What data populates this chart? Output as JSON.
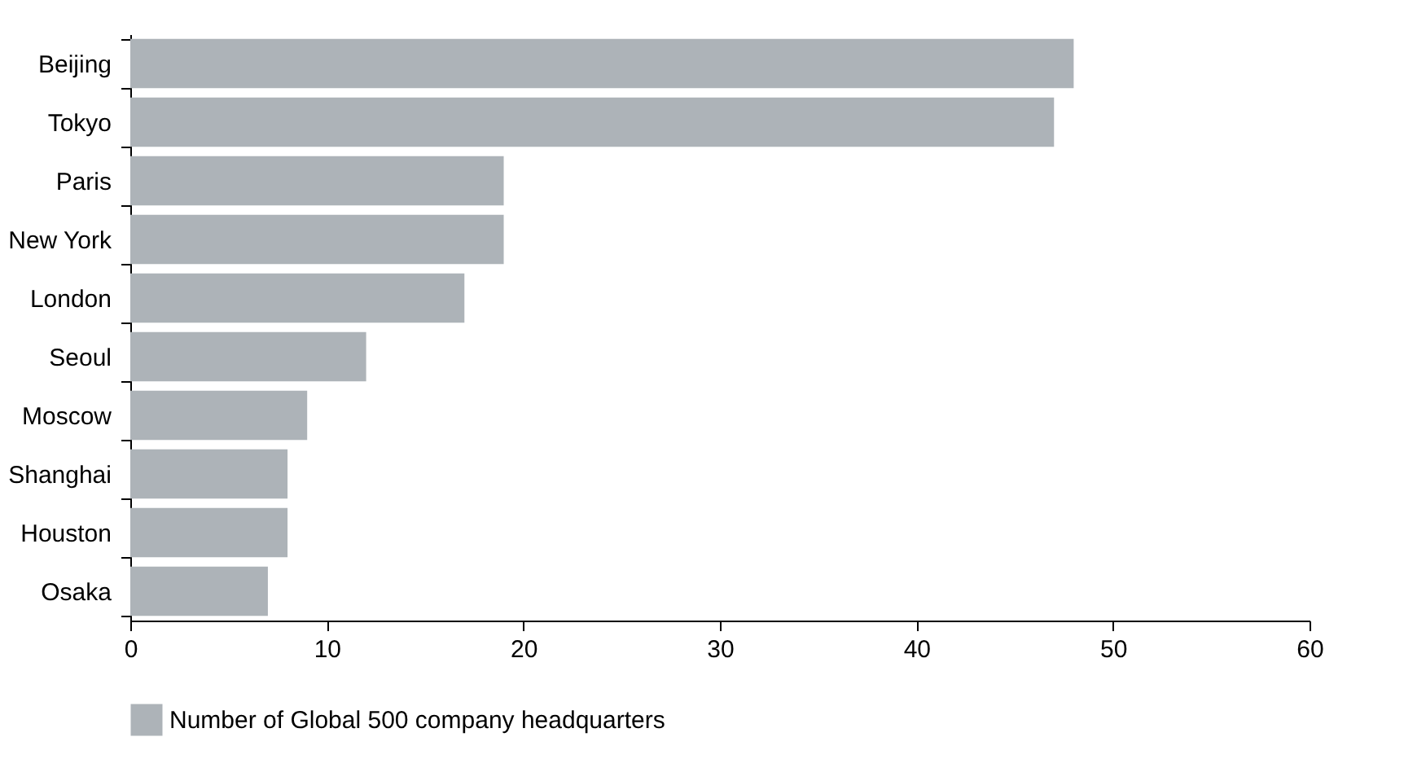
{
  "chart_data": {
    "type": "bar",
    "orientation": "horizontal",
    "categories": [
      "Beijing",
      "Tokyo",
      "Paris",
      "New York",
      "London",
      "Seoul",
      "Moscow",
      "Shanghai",
      "Houston",
      "Osaka"
    ],
    "series": [
      {
        "name": "Number of Global 500 company headquarters",
        "color": "#adb3b8",
        "values": [
          48,
          47,
          19,
          19,
          17,
          12,
          9,
          8,
          8,
          7
        ]
      }
    ],
    "xlim": [
      0,
      60
    ],
    "xticks": [
      0,
      10,
      20,
      30,
      40,
      50,
      60
    ],
    "grid": false,
    "legend": "bottom"
  }
}
